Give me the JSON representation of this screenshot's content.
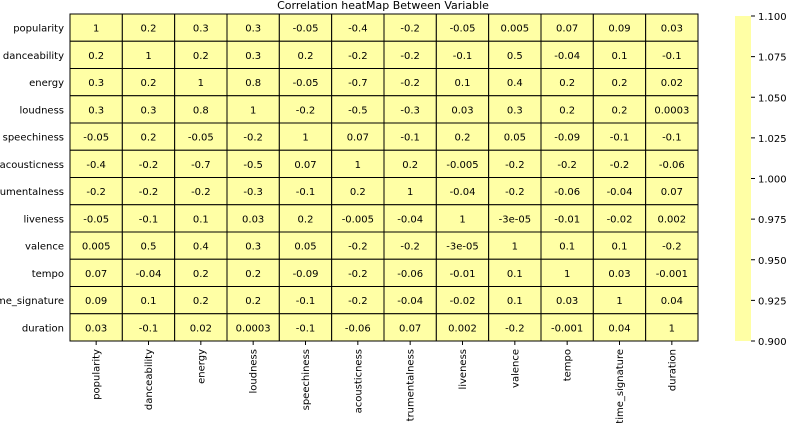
{
  "chart_data": {
    "type": "heatmap",
    "title": "Correlation heatMap Between Variable",
    "row_labels": [
      "popularity",
      "danceability",
      "energy",
      "loudness",
      "speechiness",
      "acousticness",
      "trumentalness",
      "liveness",
      "valence",
      "tempo",
      "me_signature",
      "duration"
    ],
    "col_labels": [
      "popularity",
      "danceability",
      "energy",
      "loudness",
      "speechiness",
      "acousticness",
      "trumentalness",
      "liveness",
      "valence",
      "tempo",
      "time_signature",
      "duration"
    ],
    "values": [
      [
        "1",
        "0.2",
        "0.3",
        "0.3",
        "-0.05",
        "-0.4",
        "-0.2",
        "-0.05",
        "0.005",
        "0.07",
        "0.09",
        "0.03"
      ],
      [
        "0.2",
        "1",
        "0.2",
        "0.3",
        "0.2",
        "-0.2",
        "-0.2",
        "-0.1",
        "0.5",
        "-0.04",
        "0.1",
        "-0.1"
      ],
      [
        "0.3",
        "0.2",
        "1",
        "0.8",
        "-0.05",
        "-0.7",
        "-0.2",
        "0.1",
        "0.4",
        "0.2",
        "0.2",
        "0.02"
      ],
      [
        "0.3",
        "0.3",
        "0.8",
        "1",
        "-0.2",
        "-0.5",
        "-0.3",
        "0.03",
        "0.3",
        "0.2",
        "0.2",
        "0.0003"
      ],
      [
        "-0.05",
        "0.2",
        "-0.05",
        "-0.2",
        "1",
        "0.07",
        "-0.1",
        "0.2",
        "0.05",
        "-0.09",
        "-0.1",
        "-0.1"
      ],
      [
        "-0.4",
        "-0.2",
        "-0.7",
        "-0.5",
        "0.07",
        "1",
        "0.2",
        "-0.005",
        "-0.2",
        "-0.2",
        "-0.2",
        "-0.06"
      ],
      [
        "-0.2",
        "-0.2",
        "-0.2",
        "-0.3",
        "-0.1",
        "0.2",
        "1",
        "-0.04",
        "-0.2",
        "-0.06",
        "-0.04",
        "0.07"
      ],
      [
        "-0.05",
        "-0.1",
        "0.1",
        "0.03",
        "0.2",
        "-0.005",
        "-0.04",
        "1",
        "-3e-05",
        "-0.01",
        "-0.02",
        "0.002"
      ],
      [
        "0.005",
        "0.5",
        "0.4",
        "0.3",
        "0.05",
        "-0.2",
        "-0.2",
        "-3e-05",
        "1",
        "0.1",
        "0.1",
        "-0.2"
      ],
      [
        "0.07",
        "-0.04",
        "0.2",
        "0.2",
        "-0.09",
        "-0.2",
        "-0.06",
        "-0.01",
        "0.1",
        "1",
        "0.03",
        "-0.001"
      ],
      [
        "0.09",
        "0.1",
        "0.2",
        "0.2",
        "-0.1",
        "-0.2",
        "-0.04",
        "-0.02",
        "0.1",
        "0.03",
        "1",
        "0.04"
      ],
      [
        "0.03",
        "-0.1",
        "0.02",
        "0.0003",
        "-0.1",
        "-0.06",
        "0.07",
        "0.002",
        "-0.2",
        "-0.001",
        "0.04",
        "1"
      ]
    ],
    "colorbar": {
      "range": [
        0.9,
        1.1
      ],
      "ticks": [
        "1.100",
        "1.075",
        "1.050",
        "1.025",
        "1.000",
        "0.975",
        "0.950",
        "0.925",
        "0.900"
      ]
    },
    "cell_color": "#ffffa5",
    "grid_line_color": "#000000"
  }
}
